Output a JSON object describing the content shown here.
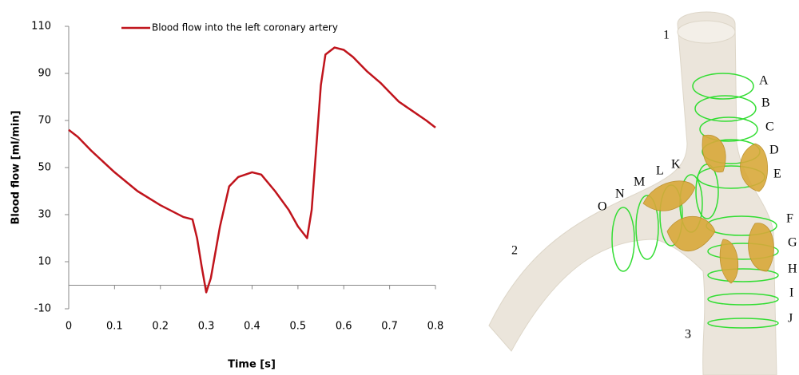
{
  "chart_data": {
    "type": "line",
    "xlabel": "Time [s]",
    "ylabel": "Blood flow [ml/min]",
    "x": [
      0,
      0.02,
      0.05,
      0.1,
      0.15,
      0.2,
      0.25,
      0.27,
      0.28,
      0.29,
      0.3,
      0.31,
      0.33,
      0.35,
      0.37,
      0.4,
      0.42,
      0.45,
      0.48,
      0.5,
      0.52,
      0.53,
      0.55,
      0.56,
      0.58,
      0.6,
      0.62,
      0.65,
      0.68,
      0.7,
      0.72,
      0.75,
      0.78,
      0.8
    ],
    "series": [
      {
        "name": "Blood flow into the left coronary artery",
        "color": "#c0141c",
        "values": [
          66,
          63,
          57,
          48,
          40,
          34,
          29,
          28,
          20,
          8,
          -3,
          3,
          25,
          42,
          46,
          48,
          47,
          40,
          32,
          25,
          20,
          32,
          85,
          98,
          101,
          100,
          97,
          91,
          86,
          82,
          78,
          74,
          70,
          67
        ]
      }
    ],
    "xlim": [
      0,
      0.8
    ],
    "xticks": [
      0,
      0.1,
      0.2,
      0.3,
      0.4,
      0.5,
      0.6,
      0.7,
      0.8
    ],
    "ylim": [
      -10,
      110
    ],
    "yticks": [
      -10,
      10,
      30,
      50,
      70,
      90,
      110
    ],
    "grid": false,
    "legend": "top"
  },
  "diagram": {
    "labels": [
      "1",
      "2",
      "3",
      "A",
      "B",
      "C",
      "D",
      "E",
      "F",
      "G",
      "H",
      "I",
      "J",
      "K",
      "L",
      "M",
      "N",
      "O"
    ]
  }
}
